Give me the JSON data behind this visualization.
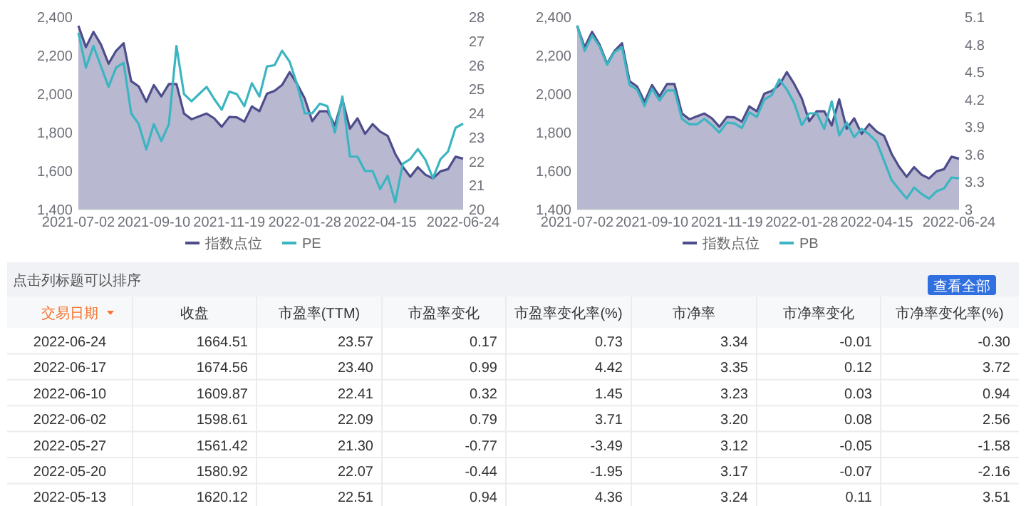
{
  "chart_data": [
    {
      "type": "line",
      "categories": [
        "2021-07-02",
        null,
        null,
        null,
        null,
        null,
        null,
        null,
        null,
        null,
        "2021-09-10",
        null,
        null,
        null,
        null,
        null,
        null,
        null,
        null,
        null,
        "2021-11-19",
        null,
        null,
        null,
        null,
        null,
        null,
        null,
        null,
        null,
        "2022-01-28",
        null,
        null,
        null,
        null,
        null,
        null,
        null,
        null,
        null,
        "2022-04-15",
        null,
        null,
        null,
        null,
        null,
        null,
        null,
        null,
        null,
        null,
        "2022-06-24"
      ],
      "series": [
        {
          "name": "指数点位",
          "type": "area",
          "color": "#4d4d8c",
          "values": [
            2355,
            2244,
            2323,
            2257,
            2158,
            2225,
            2264,
            2067,
            2040,
            1960,
            2047,
            1988,
            2052,
            2052,
            1899,
            1869,
            1884,
            1899,
            1874,
            1830,
            1881,
            1879,
            1857,
            1936,
            1911,
            2002,
            2017,
            2047,
            2114,
            2052,
            1978,
            1859,
            1911,
            1911,
            1837,
            1973,
            1820,
            1874,
            1793,
            1844,
            1805,
            1783,
            1689,
            1622,
            1570,
            1620.12,
            1580.92,
            1561.42,
            1598.61,
            1609.87,
            1674.56,
            1664.51
          ]
        },
        {
          "name": "PE",
          "type": "line",
          "axis": "y2",
          "color": "#3bb5c1",
          "values": [
            27.35,
            25.9,
            26.8,
            25.95,
            25.1,
            25.9,
            26.1,
            24.0,
            23.55,
            22.5,
            23.55,
            22.85,
            23.55,
            26.8,
            24.8,
            24.5,
            24.8,
            25.1,
            24.6,
            24.15,
            24.9,
            24.8,
            24.3,
            25.25,
            24.7,
            25.95,
            26.0,
            26.6,
            26.15,
            25.2,
            24.0,
            24.0,
            24.4,
            24.3,
            23.2,
            24.7,
            22.2,
            22.2,
            21.6,
            21.6,
            20.85,
            21.4,
            20.3,
            21.9,
            22.1,
            22.51,
            22.07,
            21.3,
            22.09,
            22.41,
            23.4,
            23.57
          ]
        }
      ],
      "ylim": [
        1400,
        2400
      ],
      "yticks": [
        {
          "value": 1400,
          "label": "1,400"
        },
        {
          "value": 1600,
          "label": "1,600"
        },
        {
          "value": 1800,
          "label": "1,800"
        },
        {
          "value": 2000,
          "label": "2,000"
        },
        {
          "value": 2200,
          "label": "2,200"
        },
        {
          "value": 2400,
          "label": "2,400"
        }
      ],
      "y2lim": [
        20,
        28
      ],
      "y2ticks": [
        20,
        21,
        22,
        23,
        24,
        25,
        26,
        27,
        28
      ],
      "legend": "bottom",
      "marker": "none",
      "line_style": "solid"
    },
    {
      "type": "line",
      "categories": [
        "2021-07-02",
        null,
        null,
        null,
        null,
        null,
        null,
        null,
        null,
        null,
        "2021-09-10",
        null,
        null,
        null,
        null,
        null,
        null,
        null,
        null,
        null,
        "2021-11-19",
        null,
        null,
        null,
        null,
        null,
        null,
        null,
        null,
        null,
        "2022-01-28",
        null,
        null,
        null,
        null,
        null,
        null,
        null,
        null,
        null,
        "2022-04-15",
        null,
        null,
        null,
        null,
        null,
        null,
        null,
        null,
        null,
        null,
        "2022-06-24"
      ],
      "series": [
        {
          "name": "指数点位",
          "type": "area",
          "color": "#4d4d8c",
          "values": [
            2355,
            2244,
            2323,
            2257,
            2158,
            2225,
            2264,
            2067,
            2040,
            1960,
            2047,
            1988,
            2052,
            2052,
            1899,
            1869,
            1884,
            1899,
            1874,
            1830,
            1881,
            1879,
            1857,
            1936,
            1911,
            2002,
            2017,
            2047,
            2114,
            2052,
            1978,
            1859,
            1911,
            1911,
            1837,
            1973,
            1820,
            1874,
            1793,
            1844,
            1805,
            1783,
            1689,
            1622,
            1570,
            1620.12,
            1580.92,
            1561.42,
            1598.61,
            1609.87,
            1674.56,
            1664.51
          ]
        },
        {
          "name": "PB",
          "type": "line",
          "axis": "y2",
          "color": "#3bb5c1",
          "values": [
            5.01,
            4.73,
            4.9,
            4.78,
            4.58,
            4.72,
            4.77,
            4.36,
            4.31,
            4.13,
            4.32,
            4.19,
            4.3,
            4.3,
            3.99,
            3.93,
            3.93,
            3.99,
            3.92,
            3.84,
            3.95,
            3.94,
            3.89,
            4.06,
            4.01,
            4.2,
            4.25,
            4.42,
            4.31,
            4.16,
            3.92,
            4.05,
            4.05,
            3.88,
            4.18,
            3.81,
            3.95,
            3.79,
            3.88,
            3.82,
            3.74,
            3.53,
            3.32,
            3.22,
            3.12,
            3.24,
            3.17,
            3.12,
            3.2,
            3.23,
            3.35,
            3.34
          ]
        }
      ],
      "ylim": [
        1400,
        2400
      ],
      "yticks": [
        {
          "value": 1400,
          "label": "1,400"
        },
        {
          "value": 1600,
          "label": "1,600"
        },
        {
          "value": 1800,
          "label": "1,800"
        },
        {
          "value": 2000,
          "label": "2,000"
        },
        {
          "value": 2200,
          "label": "2,200"
        },
        {
          "value": 2400,
          "label": "2,400"
        }
      ],
      "y2lim": [
        3,
        5.1
      ],
      "y2ticks": [
        3,
        3.3,
        3.6,
        3.9,
        4.2,
        4.5,
        4.8,
        5.1
      ],
      "legend": "bottom",
      "marker": "none",
      "line_style": "solid"
    },
    {
      "type": "other",
      "title": "点击列标题可以排序",
      "annotations": [
        "查看全部"
      ],
      "categories": [
        "交易日期",
        "收盘",
        "市盈率(TTM)",
        "市盈率变化",
        "市盈率变化率(%)",
        "市净率",
        "市净率变化",
        "市净率变化率(%)"
      ],
      "cell_labels": [
        [
          "2022-06-24",
          "1664.51",
          "23.57",
          "0.17",
          "0.73",
          "3.34",
          "-0.01",
          "-0.30"
        ],
        [
          "2022-06-17",
          "1674.56",
          "23.40",
          "0.99",
          "4.42",
          "3.35",
          "0.12",
          "3.72"
        ],
        [
          "2022-06-10",
          "1609.87",
          "22.41",
          "0.32",
          "1.45",
          "3.23",
          "0.03",
          "0.94"
        ],
        [
          "2022-06-02",
          "1598.61",
          "22.09",
          "0.79",
          "3.71",
          "3.20",
          "0.08",
          "2.56"
        ],
        [
          "2022-05-27",
          "1561.42",
          "21.30",
          "-0.77",
          "-3.49",
          "3.12",
          "-0.05",
          "-1.58"
        ],
        [
          "2022-05-20",
          "1580.92",
          "22.07",
          "-0.44",
          "-1.95",
          "3.17",
          "-0.07",
          "-2.16"
        ],
        [
          "2022-05-13",
          "1620.12",
          "22.51",
          "0.94",
          "4.36",
          "3.24",
          "0.11",
          "3.51"
        ]
      ]
    }
  ]
}
